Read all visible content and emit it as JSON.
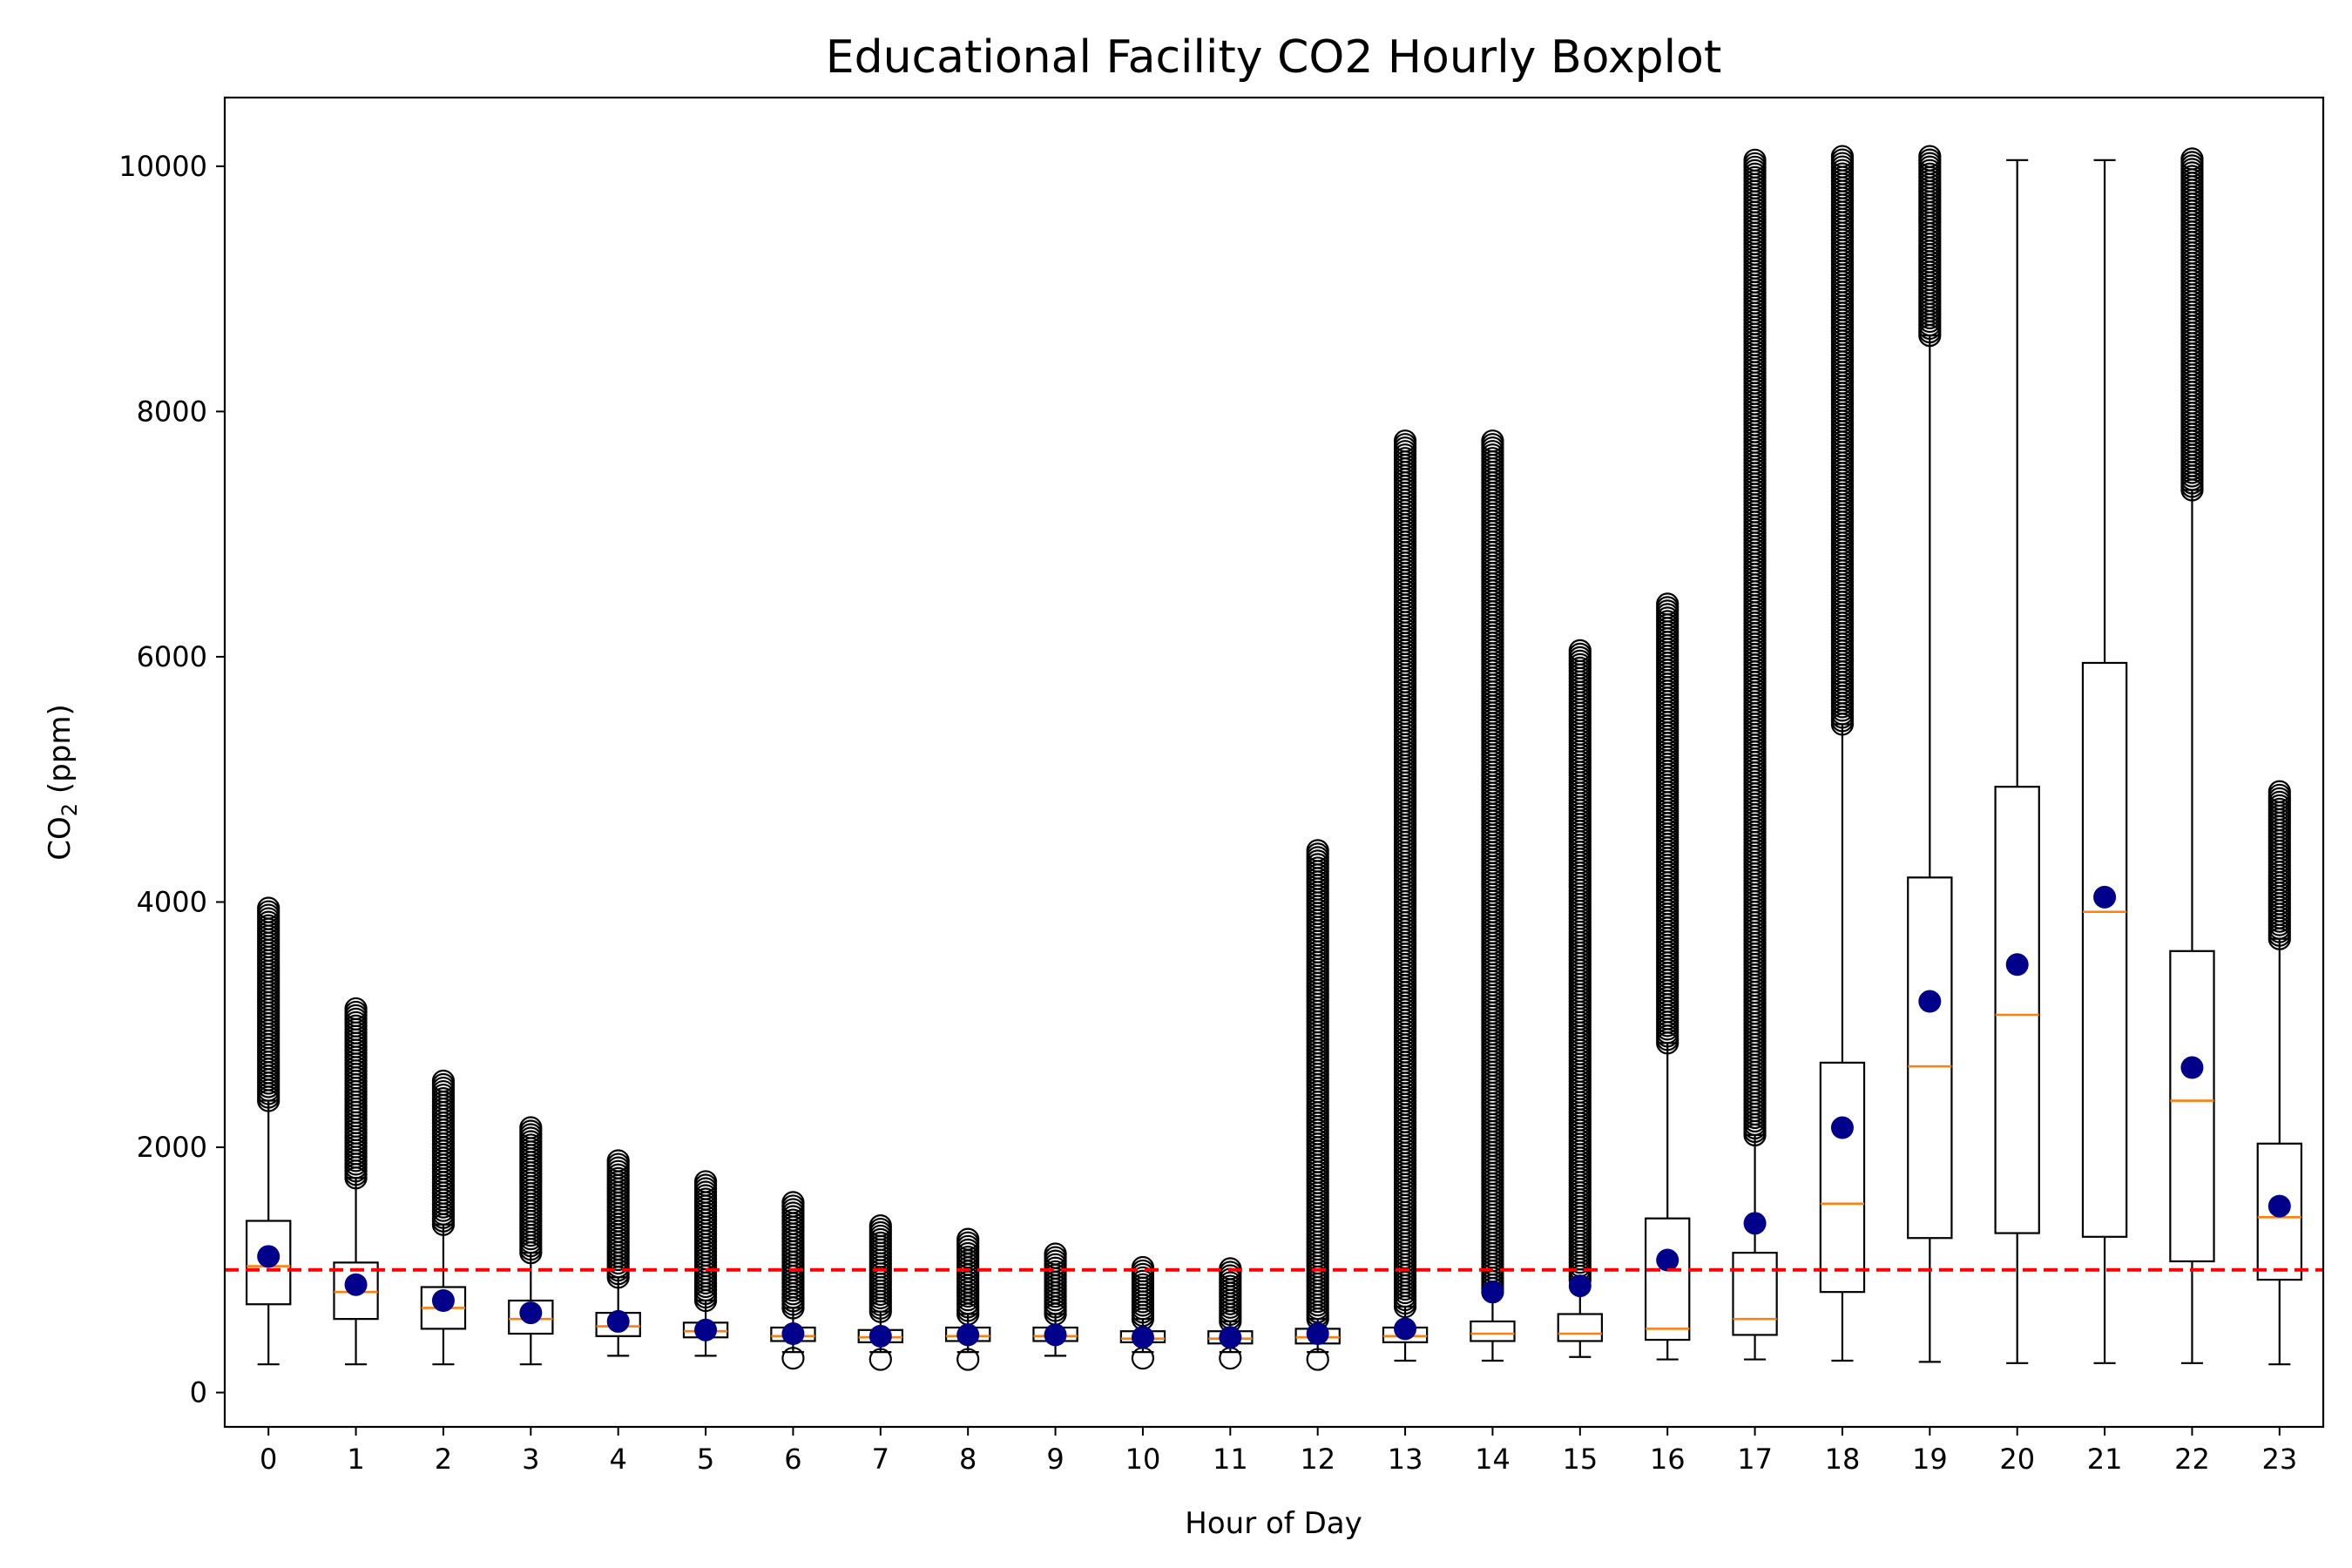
{
  "chart_data": {
    "type": "boxplot",
    "title": "Educational Facility CO2 Hourly Boxplot",
    "xlabel": "Hour of Day",
    "ylabel_main": "CO",
    "ylabel_sub": "2",
    "ylabel_unit": " (ppm)",
    "xlim": [
      -0.5,
      23.5
    ],
    "ylim": [
      -280,
      10560
    ],
    "yticks": [
      0,
      2000,
      4000,
      6000,
      8000,
      10000
    ],
    "categories": [
      "0",
      "1",
      "2",
      "3",
      "4",
      "5",
      "6",
      "7",
      "8",
      "9",
      "10",
      "11",
      "12",
      "13",
      "14",
      "15",
      "16",
      "17",
      "18",
      "19",
      "20",
      "21",
      "22",
      "23"
    ],
    "threshold": 1000,
    "grid": false,
    "colors": {
      "box": "#000000",
      "median": "#ff7f0e",
      "mean": "#00008b",
      "threshold": "#ff0000"
    },
    "boxes": [
      {
        "whisker_low": 230,
        "q1": 720,
        "median": 1030,
        "q3": 1400,
        "whisker_high": 2380,
        "mean": 1110,
        "flier_low": null,
        "flier_high": [
          2380,
          3950
        ]
      },
      {
        "whisker_low": 230,
        "q1": 600,
        "median": 820,
        "q3": 1060,
        "whisker_high": 1750,
        "mean": 880,
        "flier_low": null,
        "flier_high": [
          1750,
          3130
        ]
      },
      {
        "whisker_low": 230,
        "q1": 520,
        "median": 690,
        "q3": 860,
        "whisker_high": 1370,
        "mean": 750,
        "flier_low": null,
        "flier_high": [
          1370,
          2540
        ]
      },
      {
        "whisker_low": 230,
        "q1": 480,
        "median": 600,
        "q3": 750,
        "whisker_high": 1140,
        "mean": 650,
        "flier_low": null,
        "flier_high": [
          1140,
          2160
        ]
      },
      {
        "whisker_low": 300,
        "q1": 460,
        "median": 540,
        "q3": 650,
        "whisker_high": 940,
        "mean": 580,
        "flier_low": null,
        "flier_high": [
          940,
          1890
        ]
      },
      {
        "whisker_low": 300,
        "q1": 450,
        "median": 500,
        "q3": 570,
        "whisker_high": 750,
        "mean": 510,
        "flier_low": null,
        "flier_high": [
          750,
          1720
        ]
      },
      {
        "whisker_low": 330,
        "q1": 420,
        "median": 460,
        "q3": 530,
        "whisker_high": 690,
        "mean": 480,
        "flier_low": 280,
        "flier_high": [
          690,
          1550
        ]
      },
      {
        "whisker_low": 330,
        "q1": 410,
        "median": 450,
        "q3": 510,
        "whisker_high": 660,
        "mean": 460,
        "flier_low": 270,
        "flier_high": [
          660,
          1360
        ]
      },
      {
        "whisker_low": 330,
        "q1": 420,
        "median": 460,
        "q3": 530,
        "whisker_high": 640,
        "mean": 470,
        "flier_low": 270,
        "flier_high": [
          640,
          1250
        ]
      },
      {
        "whisker_low": 300,
        "q1": 420,
        "median": 460,
        "q3": 530,
        "whisker_high": 640,
        "mean": 470,
        "flier_low": null,
        "flier_high": [
          640,
          1130
        ]
      },
      {
        "whisker_low": 330,
        "q1": 410,
        "median": 440,
        "q3": 500,
        "whisker_high": 600,
        "mean": 450,
        "flier_low": 280,
        "flier_high": [
          600,
          1020
        ]
      },
      {
        "whisker_low": 330,
        "q1": 400,
        "median": 440,
        "q3": 500,
        "whisker_high": 580,
        "mean": 450,
        "flier_low": 280,
        "flier_high": [
          580,
          1010
        ]
      },
      {
        "whisker_low": 330,
        "q1": 400,
        "median": 450,
        "q3": 520,
        "whisker_high": 600,
        "mean": 480,
        "flier_low": 270,
        "flier_high": [
          600,
          4420
        ]
      },
      {
        "whisker_low": 260,
        "q1": 410,
        "median": 460,
        "q3": 530,
        "whisker_high": 700,
        "mean": 520,
        "flier_low": null,
        "flier_high": [
          700,
          7760
        ]
      },
      {
        "whisker_low": 260,
        "q1": 420,
        "median": 480,
        "q3": 580,
        "whisker_high": 820,
        "mean": 820,
        "flier_low": null,
        "flier_high": [
          820,
          7760
        ]
      },
      {
        "whisker_low": 290,
        "q1": 420,
        "median": 480,
        "q3": 640,
        "whisker_high": 920,
        "mean": 870,
        "flier_low": null,
        "flier_high": [
          920,
          6050
        ]
      },
      {
        "whisker_low": 270,
        "q1": 430,
        "median": 520,
        "q3": 1420,
        "whisker_high": 2850,
        "mean": 1080,
        "flier_low": null,
        "flier_high": [
          2850,
          6430
        ]
      },
      {
        "whisker_low": 270,
        "q1": 470,
        "median": 600,
        "q3": 1140,
        "whisker_high": 2100,
        "mean": 1380,
        "flier_low": null,
        "flier_high": [
          2100,
          10050
        ]
      },
      {
        "whisker_low": 260,
        "q1": 820,
        "median": 1540,
        "q3": 2690,
        "whisker_high": 5450,
        "mean": 2160,
        "flier_low": null,
        "flier_high": [
          5450,
          10080
        ]
      },
      {
        "whisker_low": 250,
        "q1": 1260,
        "median": 2660,
        "q3": 4200,
        "whisker_high": 8620,
        "mean": 3190,
        "flier_low": null,
        "flier_high": [
          8620,
          10080
        ]
      },
      {
        "whisker_low": 240,
        "q1": 1300,
        "median": 3080,
        "q3": 4940,
        "whisker_high": 10050,
        "mean": 3490,
        "flier_low": null,
        "flier_high": null
      },
      {
        "whisker_low": 240,
        "q1": 1270,
        "median": 3920,
        "q3": 5950,
        "whisker_high": 10050,
        "mean": 4040,
        "flier_low": null,
        "flier_high": null
      },
      {
        "whisker_low": 240,
        "q1": 1070,
        "median": 2380,
        "q3": 3600,
        "whisker_high": 7360,
        "mean": 2650,
        "flier_low": null,
        "flier_high": [
          7360,
          10060
        ]
      },
      {
        "whisker_low": 230,
        "q1": 920,
        "median": 1430,
        "q3": 2030,
        "whisker_high": 3700,
        "mean": 1520,
        "flier_low": null,
        "flier_high": [
          3700,
          4900
        ]
      }
    ]
  }
}
